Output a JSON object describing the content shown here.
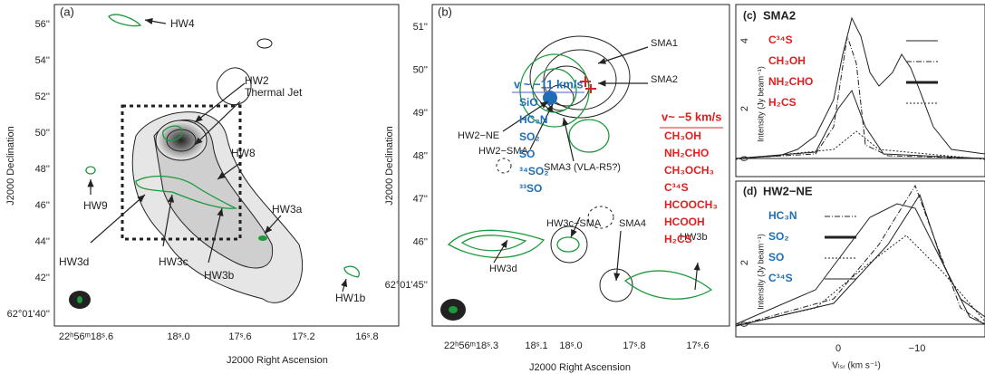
{
  "panel_a": {
    "label": "(a)",
    "x_axis_title": "J2000 Right Ascension",
    "y_axis_title": "J2000 Declination",
    "x_ticks": [
      "22ʰ56ᵐ18ˢ.6",
      "18ˢ.0",
      "17ˢ.6",
      "17ˢ.2",
      "16ˢ.8"
    ],
    "y_ticks": [
      "56''",
      "54''",
      "52''",
      "50''",
      "48''",
      "46''",
      "44''",
      "42''",
      "62°01'40''"
    ],
    "sources": [
      "HW4",
      "HW2",
      "Thermal Jet",
      "HW8",
      "HW9",
      "HW3a",
      "HW3d",
      "HW3c",
      "HW3b",
      "HW1b"
    ]
  },
  "panel_b": {
    "label": "(b)",
    "x_axis_title": "J2000 Right Ascension",
    "y_axis_title": "J2000 Declination",
    "x_ticks": [
      "22ʰ56ᵐ18ˢ.3",
      "18ˢ.1",
      "18ˢ.0",
      "17ˢ.8",
      "17ˢ.6"
    ],
    "y_ticks": [
      "51''",
      "50''",
      "49''",
      "48''",
      "47''",
      "46''",
      "62°01'45''"
    ],
    "sources": [
      "SMA1",
      "SMA2",
      "HW2−NE",
      "HW2−SMA",
      "SMA3 (VLA-R5?)",
      "HW3c−SMA",
      "SMA4",
      "HW3b",
      "HW3d"
    ],
    "blue_velocity": "v ~ −11 km/s",
    "blue_lines": [
      "SiO",
      "HC₃N",
      "SO₂",
      "SO",
      "³⁴SO₂",
      "³³SO"
    ],
    "red_velocity": "v~ −5 km/s",
    "red_lines": [
      "CH₃OH",
      "NH₂CHO",
      "CH₃OCH₃",
      "C³⁴S",
      "HCOOCH₃",
      "HCOOH",
      "H₂CS"
    ]
  },
  "panel_c": {
    "label": "(c)",
    "title": "SMA2",
    "legend": [
      "C³⁴S",
      "CH₃OH",
      "NH₂CHO",
      "H₂CS"
    ],
    "y_axis_title": "Intensity (Jy beam⁻¹)",
    "y_ticks": [
      "0",
      "2",
      "4"
    ]
  },
  "panel_d": {
    "label": "(d)",
    "title": "HW2−NE",
    "legend": [
      "HC₃N",
      "SO₂",
      "SO",
      "C³⁴S"
    ],
    "y_axis_title": "Intensity (Jy beam⁻¹)",
    "y_ticks": [
      "0",
      "2"
    ],
    "x_ticks": [
      "0",
      "−10"
    ],
    "x_axis_title": "Vₗₛᵣ (km s⁻¹)"
  }
}
